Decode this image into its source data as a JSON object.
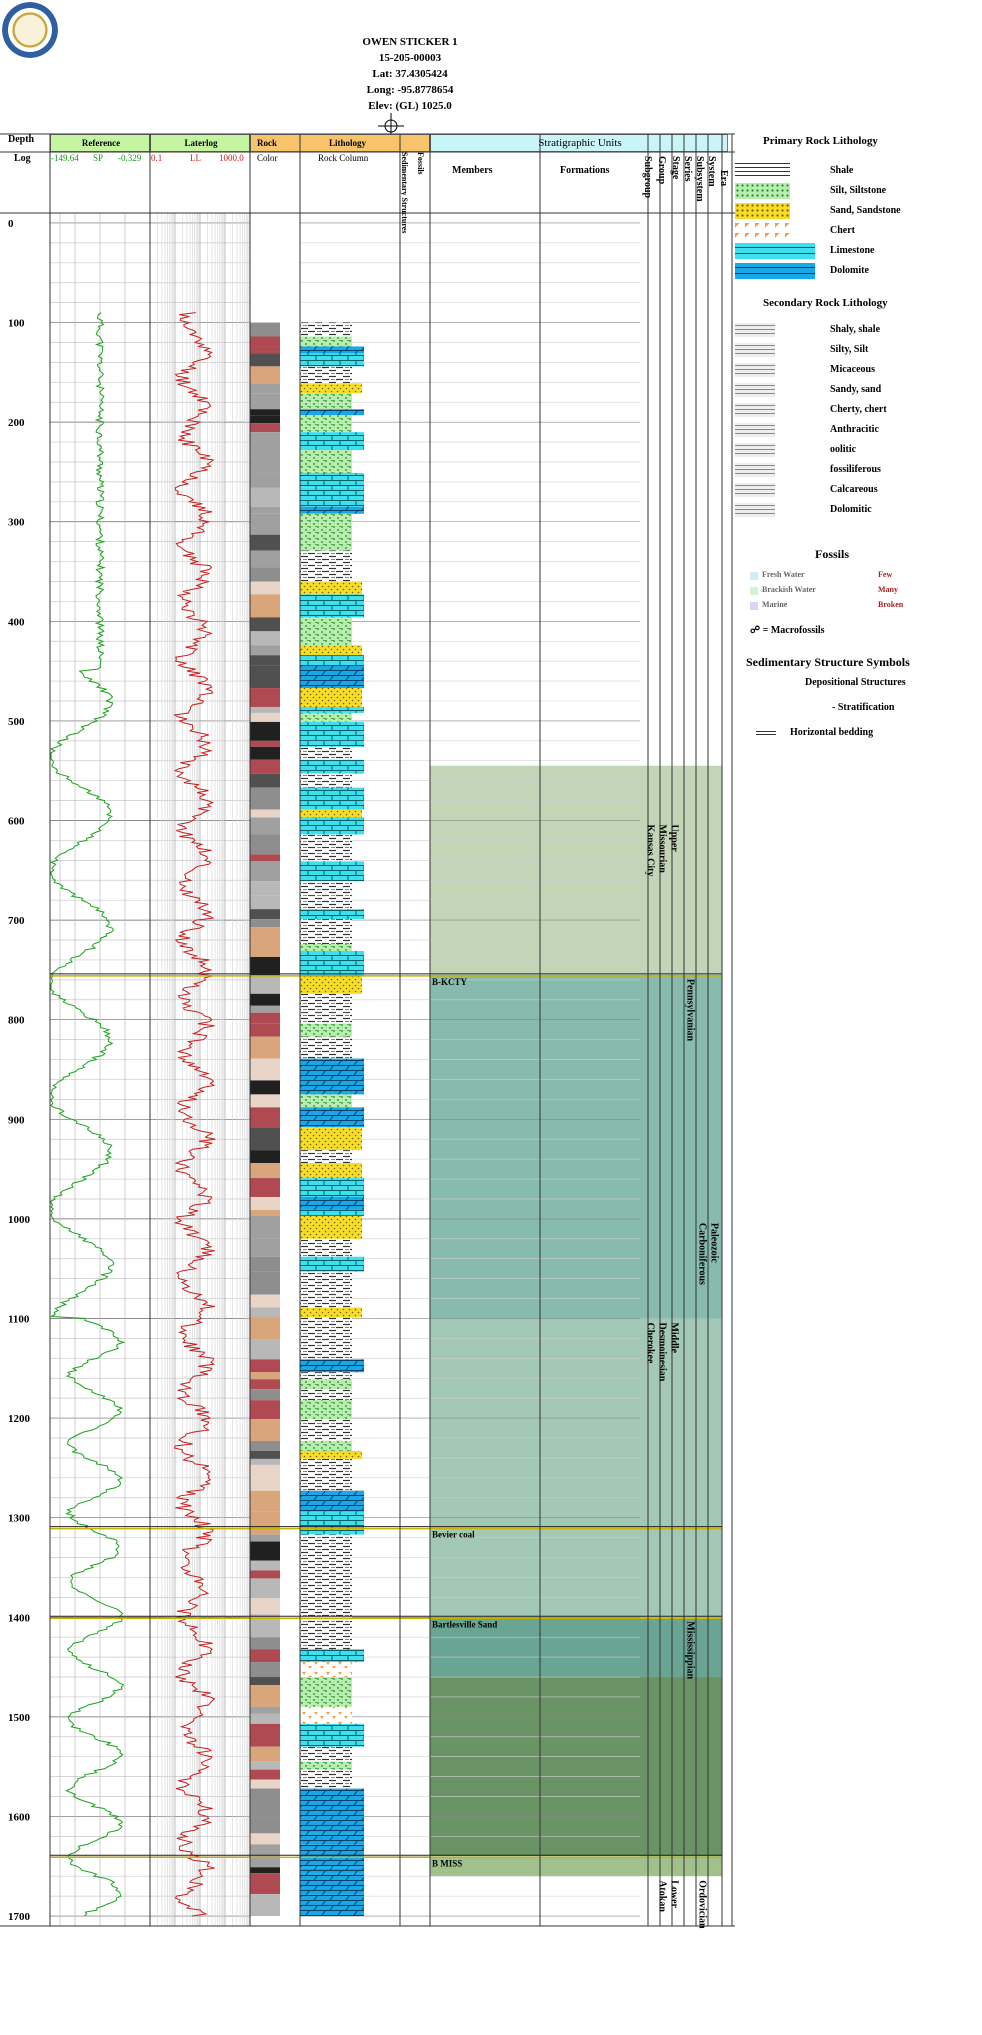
{
  "well": {
    "name": "OWEN STICKER 1",
    "api": "15-205-00003",
    "lat": "Lat: 37.4305424",
    "long": "Long: -95.8778654",
    "elev": "Elev: (GL) 1025.0"
  },
  "columns": {
    "depth": "Depth",
    "log": "Log",
    "reference": "Reference",
    "ref_left": "-149.64",
    "ref_mid": "SP",
    "ref_right": "-0.329",
    "laterlog": "Laterlog",
    "lat_left": "0.1",
    "lat_mid": "LL",
    "lat_right": "1000.0",
    "rock": "Rock",
    "rock_color": "Color",
    "lithology": "Lithology",
    "rock_column": "Rock Column",
    "sed_structures": "Sedimentary Structures",
    "fossils": "Fossils",
    "strat_units": "Stratigraphic Units",
    "members": "Members",
    "formations": "Formations",
    "subgroup": "Subgroup",
    "group": "Group",
    "stage": "Stage",
    "series": "Series",
    "subsystem": "Subsystem",
    "system": "System",
    "era": "Era"
  },
  "depth_ticks": [
    "0",
    "100",
    "200",
    "300",
    "400",
    "500",
    "600",
    "700",
    "800",
    "900",
    "1000",
    "1100",
    "1200",
    "1300",
    "1400",
    "1500",
    "1600",
    "1700"
  ],
  "depth_range": [
    -10,
    1710
  ],
  "tops": [
    {
      "depth": 755,
      "label": "B-KCTY"
    },
    {
      "depth": 1310,
      "label": "Bevier coal"
    },
    {
      "depth": 1400,
      "label": "Bartlesville Sand"
    },
    {
      "depth": 1640,
      "label": "B MISS"
    }
  ],
  "strat": {
    "group": [
      {
        "label": "Kansas City",
        "top": 600,
        "bot": 755
      },
      {
        "label": "Cherokee",
        "top": 1100,
        "bot": 1310
      }
    ],
    "stage": [
      {
        "label": "Missourian",
        "top": 600,
        "bot": 755
      },
      {
        "label": "Desmoinesian",
        "top": 1100,
        "bot": 1310
      },
      {
        "label": "Atokan",
        "top": 1660,
        "bot": 1710
      }
    ],
    "series": [
      {
        "label": "Upper",
        "top": 600,
        "bot": 755
      },
      {
        "label": "Middle",
        "top": 1100,
        "bot": 1310
      },
      {
        "label": "Lower",
        "top": 1660,
        "bot": 1710
      }
    ],
    "subsystem": [
      {
        "label": "Pennsylvanian",
        "top": 755,
        "bot": 1100
      },
      {
        "label": "Mississippian",
        "top": 1400,
        "bot": 1640
      }
    ],
    "system": [
      {
        "label": "Carboniferous",
        "top": 1000,
        "bot": 1130
      },
      {
        "label": "Ordovician",
        "top": 1660,
        "bot": 1710
      }
    ],
    "era": [
      {
        "label": "Paleozoic",
        "top": 1000,
        "bot": 1120
      }
    ]
  },
  "bands": [
    {
      "top": 545,
      "bot": 755,
      "color": "#c2d6b7"
    },
    {
      "top": 755,
      "bot": 1100,
      "color": "#86bbae"
    },
    {
      "top": 1100,
      "bot": 1400,
      "color": "#a3c9b6"
    },
    {
      "top": 1400,
      "bot": 1460,
      "color": "#6aa594"
    },
    {
      "top": 1460,
      "bot": 1640,
      "color": "#6b9466"
    },
    {
      "top": 1640,
      "bot": 1660,
      "color": "#a0c08c"
    }
  ],
  "legend": {
    "primary_title": "Primary Rock Lithology",
    "primary": [
      {
        "label": "Shale",
        "pattern": "shale"
      },
      {
        "label": "Silt, Siltstone",
        "pattern": "silt"
      },
      {
        "label": "Sand, Sandstone",
        "pattern": "sand"
      },
      {
        "label": "Chert",
        "pattern": "chert"
      },
      {
        "label": "Limestone",
        "pattern": "lime"
      },
      {
        "label": "Dolomite",
        "pattern": "dolo"
      }
    ],
    "secondary_title": "Secondary Rock Lithology",
    "secondary": [
      {
        "label": "Shaly, shale"
      },
      {
        "label": "Silty, Silt"
      },
      {
        "label": "Micaceous"
      },
      {
        "label": "Sandy, sand"
      },
      {
        "label": "Cherty, chert"
      },
      {
        "label": "Anthracitic"
      },
      {
        "label": "oolitic"
      },
      {
        "label": "fossiliferous"
      },
      {
        "label": "Calcareous"
      },
      {
        "label": "Dolomitic"
      }
    ],
    "fossils_title": "Fossils",
    "fossil_types": [
      {
        "label": "Fresh Water",
        "color": "#cfeef5"
      },
      {
        "label": "Brackish Water",
        "color": "#d7f2d0"
      },
      {
        "label": "Marine",
        "color": "#d9d6f3"
      }
    ],
    "abundance": [
      "Few",
      "Many",
      "Broken"
    ],
    "macrofossils": "= Macrofossils",
    "sed_title": "Sedimentary Structure Symbols",
    "depositional": "Depositional Structures",
    "stratification": "- Stratification",
    "horizontal": "Horizontal bedding"
  }
}
